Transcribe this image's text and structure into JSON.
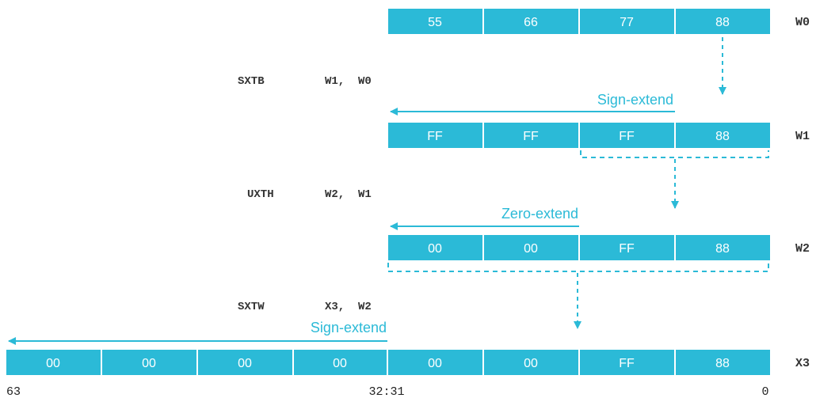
{
  "accent_color": "#2bbad7",
  "registers": [
    {
      "name": "W0",
      "cells": [
        "55",
        "66",
        "77",
        "88"
      ]
    },
    {
      "name": "W1",
      "cells": [
        "FF",
        "FF",
        "FF",
        "88"
      ]
    },
    {
      "name": "W2",
      "cells": [
        "00",
        "00",
        "FF",
        "88"
      ]
    },
    {
      "name": "X3",
      "cells": [
        "00",
        "00",
        "00",
        "00",
        "00",
        "00",
        "FF",
        "88"
      ]
    }
  ],
  "instructions": [
    {
      "op": "SXTB",
      "operands": "W1,  W0"
    },
    {
      "op": "UXTH",
      "operands": "W2,  W1"
    },
    {
      "op": "SXTW",
      "operands": "X3,  W2"
    }
  ],
  "extend_labels": [
    "Sign-extend",
    "Zero-extend",
    "Sign-extend"
  ],
  "bit_labels": {
    "high": "63",
    "mid": "32:31",
    "low": "0"
  }
}
